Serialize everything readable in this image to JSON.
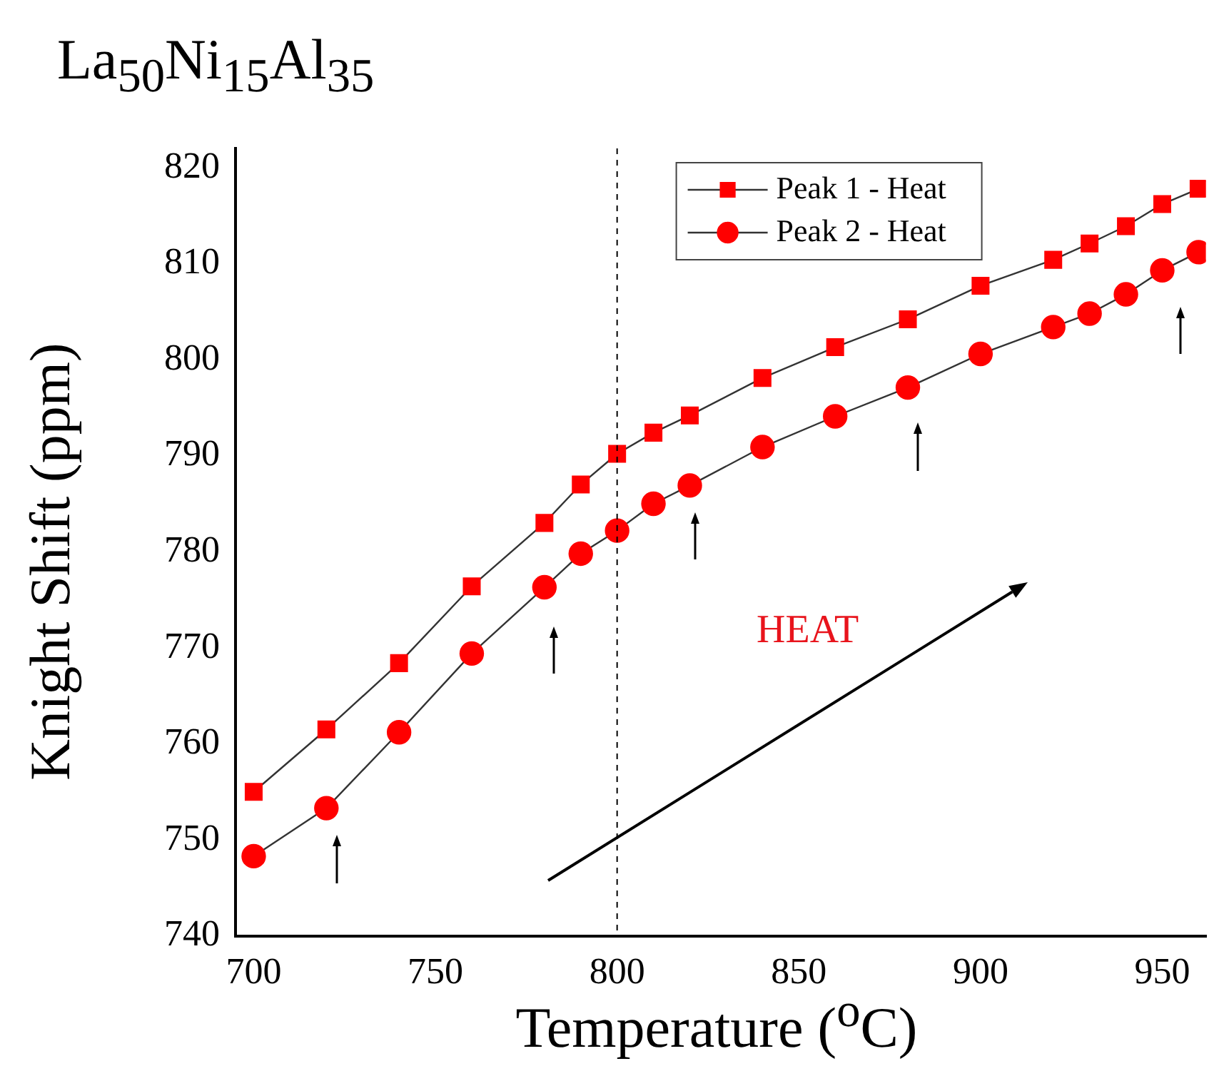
{
  "chart_data": {
    "type": "line",
    "title": "La$_{50}$Ni$_{15}$Al$_{35}$",
    "xlabel": "Temperature ($^{o}$C)",
    "ylabel": "Knight Shift (ppm)",
    "x": [
      700,
      720,
      740,
      760,
      780,
      790,
      800,
      810,
      820,
      840,
      860,
      880,
      900,
      920,
      930,
      940,
      950,
      960
    ],
    "series": [
      {
        "name": "Peak 1 - Heat",
        "color": "#ff0000",
        "marker": "square",
        "values": [
          755.0,
          761.5,
          768.4,
          776.4,
          783.0,
          787.0,
          790.2,
          792.4,
          794.2,
          798.1,
          801.3,
          804.2,
          807.7,
          810.4,
          812.1,
          813.9,
          816.2,
          817.8
        ]
      },
      {
        "name": "Peak 2 - Heat",
        "color": "#ff0000",
        "marker": "circle",
        "values": [
          748.3,
          753.3,
          761.2,
          769.4,
          776.3,
          779.8,
          782.2,
          785.0,
          786.9,
          790.9,
          794.1,
          797.1,
          800.6,
          803.4,
          804.8,
          806.8,
          809.3,
          811.2
        ]
      }
    ],
    "xlim": [
      695,
      962
    ],
    "xticks": [
      700,
      750,
      800,
      850,
      900,
      950
    ],
    "ylim": [
      740,
      822
    ],
    "yticks": [
      740,
      750,
      760,
      770,
      780,
      790,
      800,
      810,
      820
    ],
    "ref_lines": [
      {
        "axis": "x",
        "value": 800,
        "color": "#000000",
        "line_style": "dashed"
      }
    ],
    "annotations": [
      "HEAT"
    ],
    "legend": "top right",
    "grid": false,
    "line_style": "solid"
  }
}
